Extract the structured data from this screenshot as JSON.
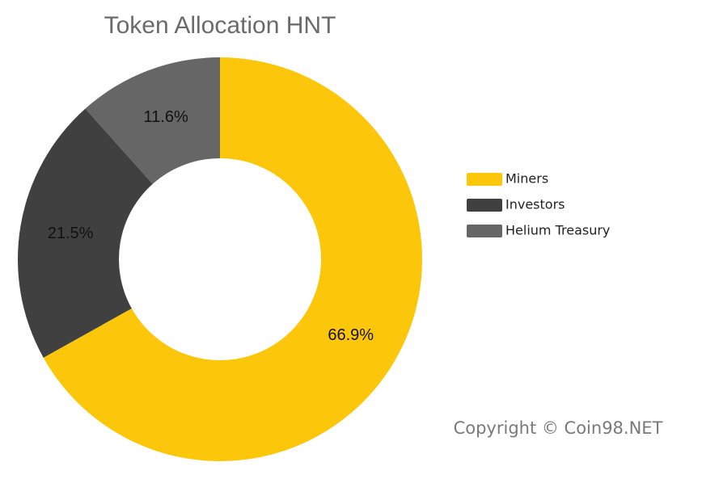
{
  "chart_data": {
    "type": "donut",
    "title": "Token Allocation HNT",
    "categories": [
      "Miners",
      "Investors",
      "Helium Treasury"
    ],
    "values": [
      66.9,
      21.5,
      11.6
    ],
    "value_labels": [
      "66.9%",
      "21.5%",
      "11.6%"
    ],
    "colors": [
      "#fcc70a",
      "#404040",
      "#666666"
    ],
    "legend": "right",
    "annotation": "Copyright © Coin98.NET"
  }
}
